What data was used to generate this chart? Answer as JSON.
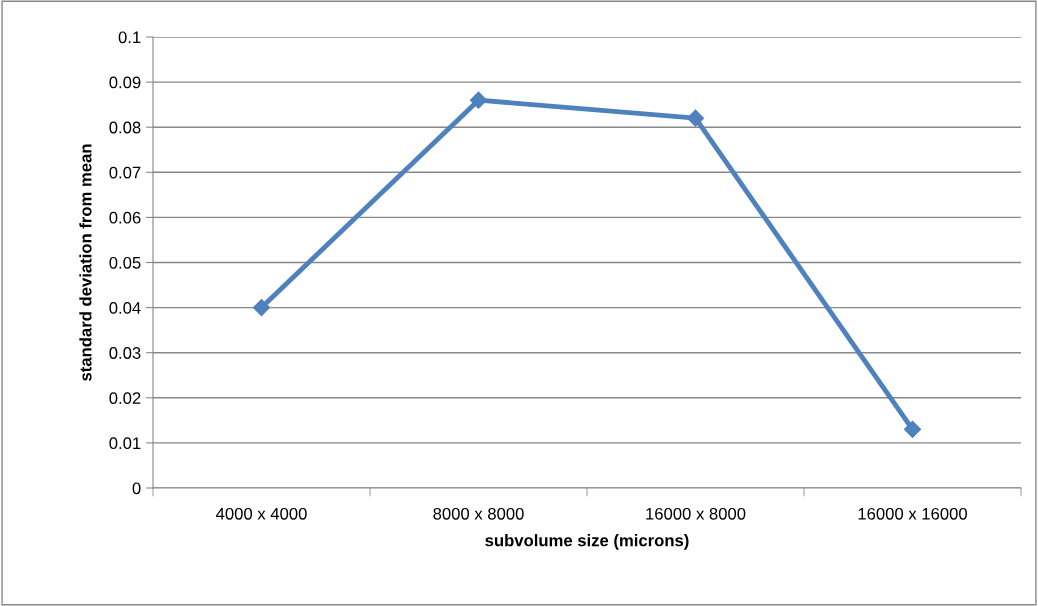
{
  "chart_data": {
    "type": "line",
    "xlabel": "subvolume size (microns)",
    "ylabel": "standard deviation from mean",
    "categories": [
      "4000 x 4000",
      "8000 x 8000",
      "16000 x 8000",
      "16000 x 16000"
    ],
    "series": [
      {
        "color": "#4f81bd",
        "values": [
          0.04,
          0.086,
          0.082,
          0.013
        ]
      }
    ],
    "ylim": [
      0,
      0.1
    ],
    "yticks": [
      0,
      0.01,
      0.02,
      0.03,
      0.04,
      0.05,
      0.06,
      0.07,
      0.08,
      0.09,
      0.1
    ],
    "grid": "y",
    "marker": "diamond",
    "line_style": "solid",
    "legend": false
  }
}
